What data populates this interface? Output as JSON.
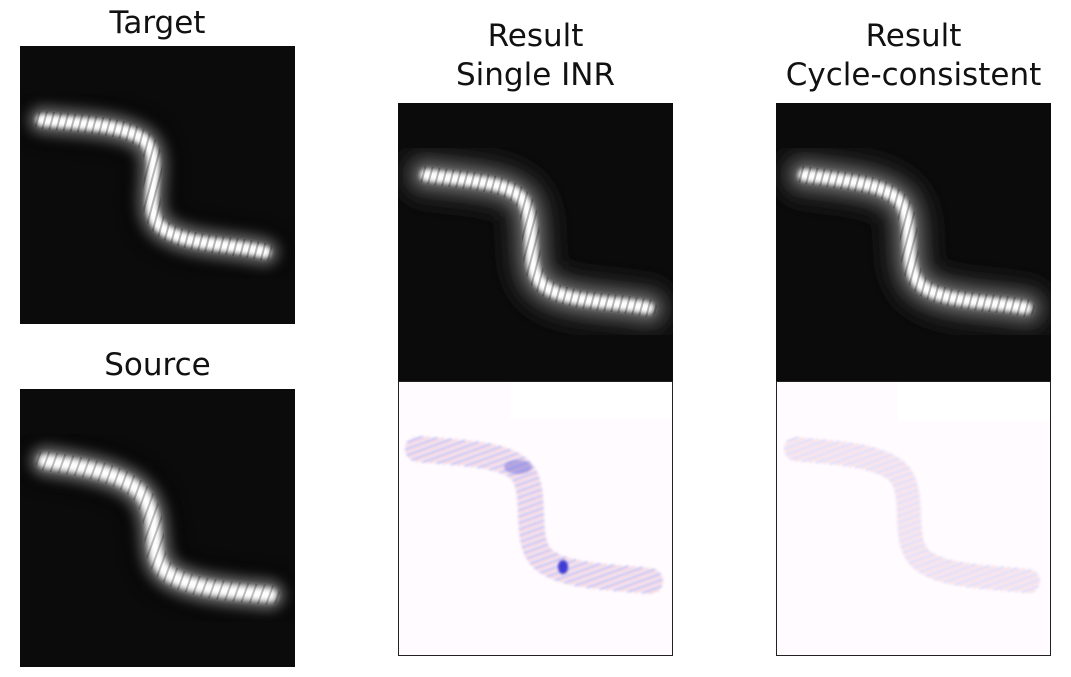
{
  "figure": {
    "target": {
      "title": "Target"
    },
    "source": {
      "title": "Source"
    },
    "single_inr": {
      "title_line1": "Result",
      "title_line2": "Single INR"
    },
    "cycle": {
      "title_line1": "Result",
      "title_line2": "Cycle-consistent"
    }
  },
  "colors": {
    "image_background": "#0b0b0b",
    "shape_fill": "#ffffff",
    "diff_background": "#fffbff",
    "diff_positive": "#d03030",
    "diff_negative": "#2020d0"
  }
}
